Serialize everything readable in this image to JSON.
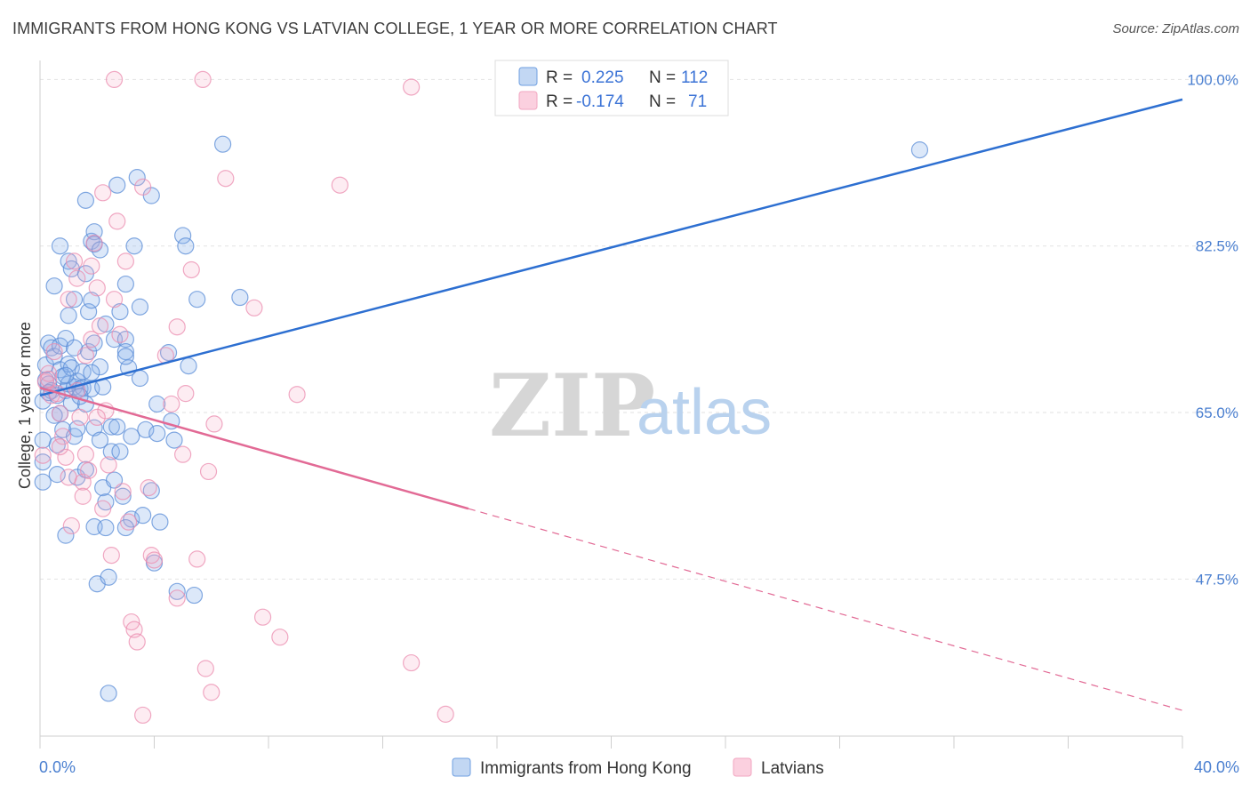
{
  "header": {
    "title": "IMMIGRANTS FROM HONG KONG VS LATVIAN COLLEGE, 1 YEAR OR MORE CORRELATION CHART",
    "source": "Source: ZipAtlas.com"
  },
  "watermark": {
    "zip": "ZIP",
    "atlas": "atlas"
  },
  "legend_top": {
    "rows": [
      {
        "r_label": "R =",
        "r_value": "0.225",
        "n_label": "N =",
        "n_value": "112"
      },
      {
        "r_label": "R =",
        "r_value": "-0.174",
        "n_label": "N =",
        "n_value": "71"
      }
    ]
  },
  "chart_data": {
    "type": "scatter",
    "title": "IMMIGRANTS FROM HONG KONG VS LATVIAN COLLEGE, 1 YEAR OR MORE CORRELATION CHART",
    "xlabel": "",
    "ylabel": "College, 1 year or more",
    "xlim": [
      0,
      40
    ],
    "ylim": [
      31,
      102
    ],
    "x_tick_labels": [
      {
        "value": 0,
        "label": "0.0%"
      },
      {
        "value": 40,
        "label": "40.0%"
      }
    ],
    "y_tick_labels": [
      {
        "value": 47.5,
        "label": "47.5%"
      },
      {
        "value": 65.0,
        "label": "65.0%"
      },
      {
        "value": 82.5,
        "label": "82.5%"
      },
      {
        "value": 100.0,
        "label": "100.0%"
      }
    ],
    "grid": true,
    "legend_position": "bottom-center",
    "colors": {
      "hongkong": "#6f9fe0",
      "latvians": "#f2a6c0",
      "hongkong_line": "#2d6fd1",
      "latvians_line": "#e26a95"
    },
    "series": [
      {
        "name": "Immigrants from Hong Kong",
        "R": 0.225,
        "N": 112,
        "trend": {
          "x0": 0.0,
          "y0": 66.8,
          "x1": 40.0,
          "y1": 97.9
        },
        "points": [
          [
            0.1,
            66.2
          ],
          [
            0.1,
            62.1
          ],
          [
            0.1,
            59.8
          ],
          [
            0.1,
            57.7
          ],
          [
            0.2,
            70.0
          ],
          [
            0.2,
            68.4
          ],
          [
            0.3,
            72.3
          ],
          [
            0.3,
            68.0
          ],
          [
            0.4,
            71.8
          ],
          [
            0.4,
            67.3
          ],
          [
            0.5,
            78.3
          ],
          [
            0.5,
            70.9
          ],
          [
            0.6,
            66.8
          ],
          [
            0.6,
            61.6
          ],
          [
            0.6,
            58.5
          ],
          [
            0.7,
            82.5
          ],
          [
            0.7,
            72.0
          ],
          [
            0.7,
            69.5
          ],
          [
            0.7,
            64.9
          ],
          [
            0.8,
            68.8
          ],
          [
            0.8,
            63.2
          ],
          [
            0.9,
            72.8
          ],
          [
            0.9,
            67.3
          ],
          [
            0.9,
            52.1
          ],
          [
            1.0,
            80.9
          ],
          [
            1.0,
            70.1
          ],
          [
            1.0,
            68.0
          ],
          [
            1.1,
            80.1
          ],
          [
            1.1,
            69.7
          ],
          [
            1.1,
            66.0
          ],
          [
            1.2,
            76.9
          ],
          [
            1.2,
            71.8
          ],
          [
            1.2,
            67.7
          ],
          [
            1.2,
            62.5
          ],
          [
            1.3,
            68.3
          ],
          [
            1.3,
            58.2
          ],
          [
            1.4,
            67.5
          ],
          [
            1.5,
            69.3
          ],
          [
            1.5,
            67.6
          ],
          [
            1.6,
            87.3
          ],
          [
            1.6,
            79.6
          ],
          [
            1.6,
            65.9
          ],
          [
            1.6,
            59.0
          ],
          [
            1.7,
            75.6
          ],
          [
            1.7,
            71.4
          ],
          [
            1.8,
            83.0
          ],
          [
            1.8,
            76.8
          ],
          [
            1.8,
            67.5
          ],
          [
            1.9,
            84.0
          ],
          [
            1.9,
            82.7
          ],
          [
            1.9,
            72.3
          ],
          [
            1.9,
            63.4
          ],
          [
            1.9,
            53.0
          ],
          [
            2.0,
            47.0
          ],
          [
            2.1,
            82.1
          ],
          [
            2.1,
            69.8
          ],
          [
            2.1,
            62.1
          ],
          [
            2.2,
            67.7
          ],
          [
            2.2,
            57.1
          ],
          [
            2.3,
            74.3
          ],
          [
            2.3,
            55.6
          ],
          [
            2.3,
            52.9
          ],
          [
            2.4,
            47.7
          ],
          [
            2.5,
            63.5
          ],
          [
            2.5,
            60.9
          ],
          [
            2.6,
            72.7
          ],
          [
            2.7,
            88.9
          ],
          [
            2.7,
            63.5
          ],
          [
            2.8,
            75.6
          ],
          [
            2.8,
            60.9
          ],
          [
            2.9,
            56.2
          ],
          [
            3.0,
            78.5
          ],
          [
            3.0,
            72.7
          ],
          [
            3.0,
            71.4
          ],
          [
            3.1,
            69.7
          ],
          [
            3.2,
            62.5
          ],
          [
            3.2,
            53.8
          ],
          [
            3.3,
            82.5
          ],
          [
            3.4,
            89.7
          ],
          [
            3.5,
            76.1
          ],
          [
            3.5,
            68.6
          ],
          [
            3.6,
            54.2
          ],
          [
            3.7,
            63.2
          ],
          [
            3.9,
            87.8
          ],
          [
            4.0,
            49.2
          ],
          [
            4.1,
            62.8
          ],
          [
            4.1,
            65.9
          ],
          [
            4.2,
            53.5
          ],
          [
            4.5,
            71.3
          ],
          [
            4.6,
            64.1
          ],
          [
            4.7,
            62.1
          ],
          [
            4.8,
            46.2
          ],
          [
            5.0,
            83.6
          ],
          [
            5.1,
            82.5
          ],
          [
            5.2,
            69.9
          ],
          [
            5.4,
            45.8
          ],
          [
            5.5,
            76.9
          ],
          [
            6.4,
            93.2
          ],
          [
            7.0,
            77.1
          ],
          [
            30.8,
            92.6
          ],
          [
            3.0,
            70.9
          ],
          [
            1.4,
            66.7
          ],
          [
            0.5,
            64.7
          ],
          [
            2.6,
            57.9
          ],
          [
            1.3,
            63.3
          ],
          [
            0.9,
            68.9
          ],
          [
            2.4,
            35.5
          ],
          [
            3.0,
            52.9
          ],
          [
            1.0,
            75.2
          ],
          [
            3.9,
            56.8
          ],
          [
            1.8,
            69.2
          ],
          [
            0.3,
            67.1
          ]
        ]
      },
      {
        "name": "Latvians",
        "R": -0.174,
        "N": 71,
        "trend": {
          "x0": 0.0,
          "y0": 67.6,
          "x1": 15.0,
          "y1": 54.9,
          "dashed_to_x": 40.0,
          "dashed_to_y": 33.7
        },
        "points": [
          [
            0.1,
            60.5
          ],
          [
            0.2,
            68.2
          ],
          [
            0.3,
            69.1
          ],
          [
            0.4,
            66.8
          ],
          [
            0.5,
            71.4
          ],
          [
            0.6,
            67.0
          ],
          [
            0.7,
            64.9
          ],
          [
            0.8,
            62.5
          ],
          [
            0.9,
            60.3
          ],
          [
            1.0,
            76.9
          ],
          [
            1.0,
            58.2
          ],
          [
            1.1,
            53.1
          ],
          [
            1.2,
            80.9
          ],
          [
            1.3,
            79.1
          ],
          [
            1.4,
            64.5
          ],
          [
            1.5,
            57.7
          ],
          [
            1.6,
            71.0
          ],
          [
            1.6,
            60.6
          ],
          [
            1.7,
            58.9
          ],
          [
            1.8,
            80.4
          ],
          [
            1.8,
            72.7
          ],
          [
            1.9,
            82.8
          ],
          [
            2.0,
            78.1
          ],
          [
            2.1,
            74.1
          ],
          [
            2.2,
            88.1
          ],
          [
            2.2,
            54.9
          ],
          [
            2.3,
            65.2
          ],
          [
            2.4,
            59.5
          ],
          [
            2.5,
            50.0
          ],
          [
            2.6,
            76.9
          ],
          [
            2.7,
            85.1
          ],
          [
            2.8,
            73.2
          ],
          [
            2.9,
            56.7
          ],
          [
            3.0,
            80.9
          ],
          [
            3.1,
            53.5
          ],
          [
            3.2,
            43.0
          ],
          [
            3.3,
            42.2
          ],
          [
            3.4,
            40.9
          ],
          [
            3.6,
            33.2
          ],
          [
            3.8,
            57.1
          ],
          [
            3.9,
            50.0
          ],
          [
            4.0,
            49.5
          ],
          [
            4.4,
            71.0
          ],
          [
            4.6,
            65.9
          ],
          [
            4.8,
            74.0
          ],
          [
            4.8,
            45.5
          ],
          [
            5.0,
            60.6
          ],
          [
            5.1,
            67.0
          ],
          [
            5.3,
            80.0
          ],
          [
            5.5,
            49.6
          ],
          [
            5.8,
            38.1
          ],
          [
            5.9,
            58.8
          ],
          [
            6.0,
            35.6
          ],
          [
            6.1,
            63.8
          ],
          [
            6.5,
            89.6
          ],
          [
            7.5,
            76.0
          ],
          [
            7.8,
            43.5
          ],
          [
            8.4,
            41.4
          ],
          [
            9.0,
            66.9
          ],
          [
            10.5,
            88.9
          ],
          [
            13.0,
            99.2
          ],
          [
            13.0,
            38.7
          ],
          [
            14.2,
            33.3
          ],
          [
            2.6,
            100.0
          ],
          [
            5.7,
            100.0
          ],
          [
            1.3,
            67.3
          ],
          [
            0.7,
            61.4
          ],
          [
            3.6,
            88.7
          ],
          [
            2.0,
            64.5
          ],
          [
            1.5,
            56.2
          ],
          [
            0.3,
            68.5
          ]
        ]
      }
    ]
  },
  "legend_bottom": {
    "items": [
      {
        "label": "Immigrants from Hong Kong"
      },
      {
        "label": "Latvians"
      }
    ]
  }
}
